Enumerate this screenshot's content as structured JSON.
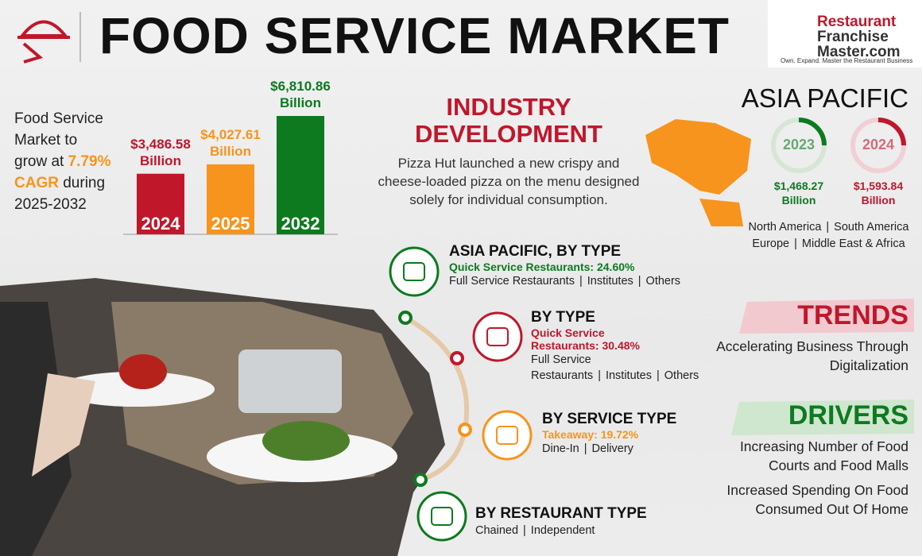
{
  "header": {
    "title": "FOOD SERVICE MARKET",
    "logo": {
      "line1": "Restaurant",
      "line2": "Franchise",
      "line3": "Master.com",
      "tagline": "Own. Expand. Master the Restaurant Business"
    }
  },
  "intro": {
    "lead": "Food Service Market to grow at",
    "cagr": "7.79%",
    "cagr_word": "CAGR",
    "tail": "during 2025-2032"
  },
  "bar_chart": {
    "type": "bar",
    "categories": [
      "2024",
      "2025",
      "2032"
    ],
    "values": [
      3486.58,
      4027.61,
      6810.86
    ],
    "value_labels": [
      "$3,486.58",
      "$4,027.61",
      "$6,810.86"
    ],
    "unit": "Billion",
    "colors": [
      "#c0172b",
      "#f7941d",
      "#0d7a1f"
    ]
  },
  "industry": {
    "title_line1": "INDUSTRY",
    "title_line2": "DEVELOPMENT",
    "text": "Pizza Hut launched a new crispy and cheese-loaded pizza on the menu designed solely for individual consumption."
  },
  "asia": {
    "title": "ASIA PACIFIC",
    "rings": [
      {
        "year": "2023",
        "value_label": "$1,468.27",
        "unit": "Billion",
        "color": "#0d7a1f"
      },
      {
        "year": "2024",
        "value_label": "$1,593.84",
        "unit": "Billion",
        "color": "#c0172b"
      }
    ]
  },
  "regions": [
    "North America",
    "South America",
    "Europe",
    "Middle East & Africa"
  ],
  "segments": [
    {
      "title": "ASIA PACIFIC, BY TYPE",
      "highlight": "Quick Service Restaurants",
      "share": "24.60%",
      "others": [
        "Full Service Restaurants",
        "Institutes",
        "Others"
      ],
      "color": "#0d7a1f"
    },
    {
      "title": "BY TYPE",
      "highlight": "Quick Service Restaurants",
      "share": "30.48%",
      "others": [
        "Full Service Restaurants",
        "Institutes",
        "Others"
      ],
      "color": "#c0172b"
    },
    {
      "title": "BY SERVICE TYPE",
      "highlight": "Takeaway",
      "share": "19.72%",
      "others": [
        "Dine-In",
        "Delivery"
      ],
      "color": "#f7941d"
    },
    {
      "title": "BY RESTAURANT TYPE",
      "others": [
        "Chained",
        "Independent"
      ],
      "color": "#0d7a1f"
    }
  ],
  "trends": {
    "title": "TRENDS",
    "items": [
      "Accelerating Business Through Digitalization"
    ]
  },
  "drivers": {
    "title": "DRIVERS",
    "items": [
      "Increasing Number of Food Courts and Food Malls",
      "Increased Spending On Food Consumed Out Of Home"
    ]
  }
}
